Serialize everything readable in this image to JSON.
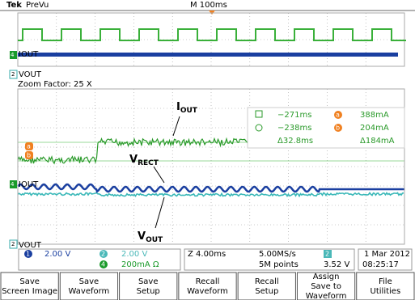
{
  "header": {
    "brand": "Tek",
    "mode": "PreVu",
    "timebase": "M 100ms"
  },
  "waveform_labels": {
    "overview_iout": "IOUT",
    "overview_vout": "VOUT",
    "main_iout": "IOUT",
    "bottom_vout": "VOUT"
  },
  "channel_markers": {
    "overview_iout": "4",
    "overview_vout": "2",
    "main_iout": "4",
    "bottom_vout": "2"
  },
  "zoom_factor": "Zoom Factor: 25 X",
  "annotations": [
    {
      "main": "I",
      "sub": "OUT"
    },
    {
      "main": "V",
      "sub": "RECT"
    },
    {
      "main": "V",
      "sub": "OUT"
    }
  ],
  "cursor_markers": [
    "a",
    "b"
  ],
  "cursor_readout": {
    "rows": [
      [
        "−271ms",
        "388mA"
      ],
      [
        "−238ms",
        "204mA"
      ],
      [
        "Δ32.8ms",
        "Δ184mA"
      ]
    ],
    "markers": [
      "a",
      "b"
    ]
  },
  "status": {
    "ch1": {
      "num": "1",
      "scale": "2.00 V"
    },
    "ch2": {
      "num": "2",
      "scale": "2.00 V"
    },
    "ch4": {
      "num": "4",
      "scale": "200mA Ω"
    },
    "zoom": "Z 4.00ms",
    "sample_rate": "5.00MS/s",
    "record": "5M points",
    "trigger": {
      "source": "2",
      "level": "3.52 V"
    },
    "date": "1 Mar 2012",
    "time": "08:25:17"
  },
  "buttons": [
    [
      "Save",
      "Screen Image"
    ],
    [
      "Save",
      "Waveform"
    ],
    [
      "Save",
      "Setup"
    ],
    [
      "Recall",
      "Waveform"
    ],
    [
      "Recall",
      "Setup"
    ],
    [
      "Assign",
      "Save to",
      "Waveform"
    ],
    [
      "File",
      "Utilities"
    ]
  ]
}
